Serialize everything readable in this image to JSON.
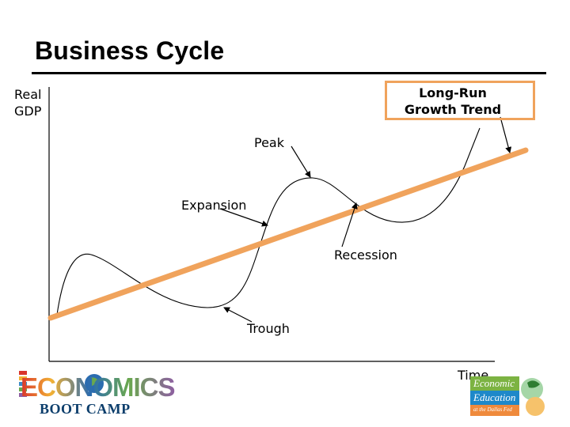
{
  "slide": {
    "title": "Business Cycle"
  },
  "diagram": {
    "y_axis_label_line1": "Real",
    "y_axis_label_line2": "GDP",
    "x_axis_label": "Time",
    "trend_label_line1": "Long-Run",
    "trend_label_line2": "Growth Trend",
    "labels": {
      "peak": "Peak",
      "expansion": "Expansion",
      "recession": "Recession",
      "trough": "Trough"
    },
    "colors": {
      "trend_line": "#f0a35c",
      "cycle_curve": "#000000",
      "axis": "#000000"
    }
  },
  "footer": {
    "left_logo_text": "ECONOMICS",
    "left_logo_subtitle": "BOOT CAMP",
    "right_logo_line1": "Economic",
    "right_logo_line2": "Education",
    "right_logo_line3": "at the Dallas Fed"
  }
}
